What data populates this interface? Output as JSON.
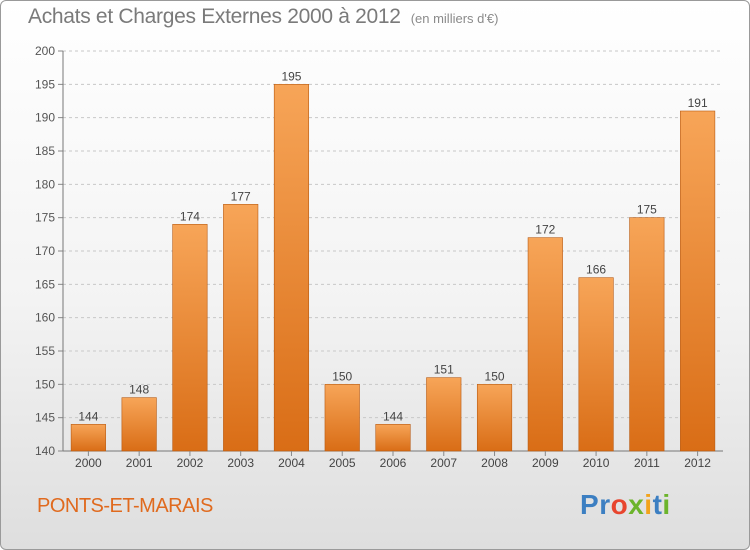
{
  "title": "Achats et Charges Externes 2000 à 2012",
  "subtitle": "(en milliers d'€)",
  "commune": "PONTS-ET-MARAIS",
  "logo": {
    "letters": [
      "P",
      "r",
      "o",
      "x",
      "i",
      "t",
      "i"
    ],
    "colors": [
      "#3c7fc2",
      "#3c7fc2",
      "#e8452e",
      "#6cb42c",
      "#f2a31b",
      "#3c7fc2",
      "#6cb42c"
    ]
  },
  "colors": {
    "bar_top": "#f7a558",
    "bar_bottom": "#d96d16",
    "bar_edge": "#b85a12",
    "commune": "#e06a1e"
  },
  "chart_data": {
    "type": "bar",
    "categories": [
      "2000",
      "2001",
      "2002",
      "2003",
      "2004",
      "2005",
      "2006",
      "2007",
      "2008",
      "2009",
      "2010",
      "2011",
      "2012"
    ],
    "values": [
      144,
      148,
      174,
      177,
      195,
      150,
      144,
      151,
      150,
      172,
      166,
      175,
      191
    ],
    "data_labels": [
      "144",
      "148",
      "174",
      "177",
      "195",
      "150",
      "144",
      "151",
      "150",
      "172",
      "166",
      "175",
      "191"
    ],
    "ylim": [
      140,
      200
    ],
    "yticks": [
      140,
      145,
      150,
      155,
      160,
      165,
      170,
      175,
      180,
      185,
      190,
      195,
      200
    ],
    "xlabel": "",
    "ylabel": "",
    "grid": "horizontal dashed",
    "legend": "none"
  }
}
